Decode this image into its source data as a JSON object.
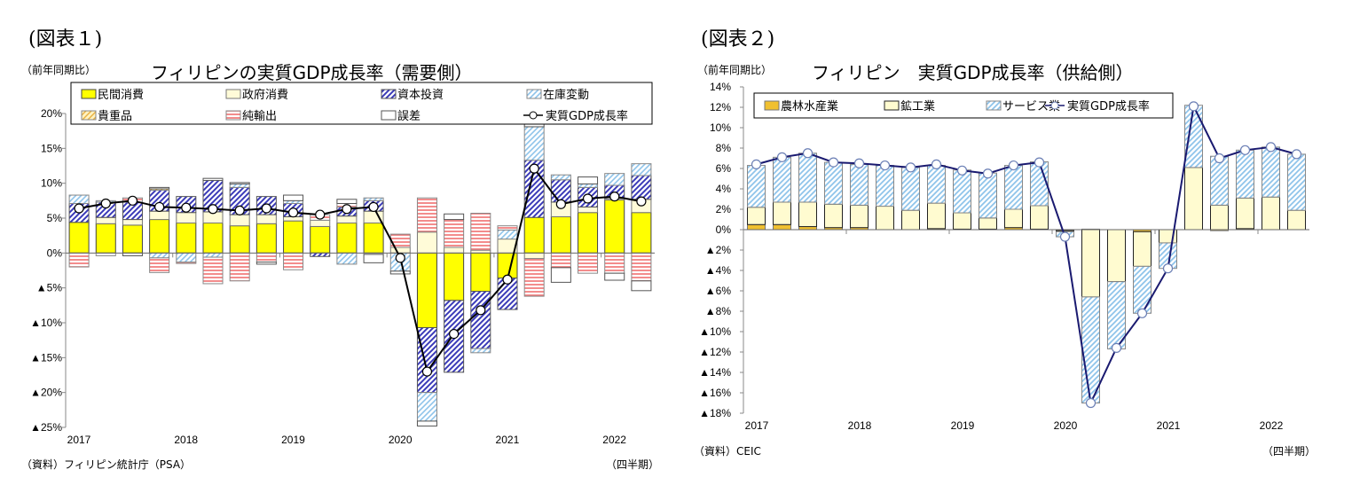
{
  "colors": {
    "private": "#ffff00",
    "gov": "#fffbd8",
    "capital": "#3a3ab8",
    "inventory": "#8fc4ea",
    "valuables": "#e8b040",
    "netexports": "#f07070",
    "discrepancy": "#ffffff",
    "agri": "#f0c030",
    "industry": "#fffbd0",
    "services": "#8fc4ea",
    "line1": "#000000",
    "line2": "#1a1a70"
  },
  "chart_data": [
    {
      "type": "bar",
      "stacked": true,
      "figure_label": "(図表１)",
      "unit_label": "（前年同期比）",
      "title": "フィリピンの実質GDP成長率（需要側）",
      "source": "（資料）フィリピン統計庁（PSA）",
      "xlabel": "（四半期）",
      "ylim": [
        -25,
        20
      ],
      "yticks": [
        20,
        15,
        10,
        5,
        0,
        -5,
        -10,
        -15,
        -20,
        -25
      ],
      "ytick_labels": [
        "20%",
        "15%",
        "10%",
        "5%",
        "0%",
        "▲5%",
        "▲10%",
        "▲15%",
        "▲20%",
        "▲25%"
      ],
      "x_year_labels": [
        "2017",
        "2018",
        "2019",
        "2020",
        "2021",
        "2022"
      ],
      "legend": "top",
      "categories": [
        "2017Q1",
        "2017Q2",
        "2017Q3",
        "2017Q4",
        "2018Q1",
        "2018Q2",
        "2018Q3",
        "2018Q4",
        "2019Q1",
        "2019Q2",
        "2019Q3",
        "2019Q4",
        "2020Q1",
        "2020Q2",
        "2020Q3",
        "2020Q4",
        "2021Q1",
        "2021Q2",
        "2021Q3",
        "2021Q4",
        "2022Q1",
        "2022Q2"
      ],
      "series": [
        {
          "name": "民間消費",
          "style": "private",
          "values": [
            4.4,
            4.2,
            4.0,
            4.8,
            4.3,
            4.3,
            3.9,
            4.2,
            4.6,
            3.8,
            4.3,
            4.3,
            0,
            -10.7,
            -6.8,
            -5.5,
            -3.6,
            5.1,
            5.2,
            5.8,
            7.6,
            5.8
          ]
        },
        {
          "name": "政府消費",
          "style": "gov",
          "values": [
            0,
            0.9,
            0.8,
            1.2,
            1.5,
            1.6,
            1.6,
            1.3,
            0.6,
            0.9,
            1.0,
            1.7,
            0.8,
            3.0,
            0.8,
            0.4,
            2.0,
            -0.8,
            2.1,
            0.8,
            0.2,
            1.9
          ]
        },
        {
          "name": "資本投資",
          "style": "capital",
          "values": [
            2.7,
            2.2,
            2.5,
            3.0,
            2.3,
            4.5,
            3.9,
            2.6,
            1.9,
            -0.5,
            1.3,
            1.5,
            0,
            -9.3,
            -10.3,
            -8.2,
            -4.5,
            8.2,
            3.2,
            2.8,
            1.9,
            3.4
          ]
        },
        {
          "name": "在庫変動",
          "style": "inventory",
          "values": [
            1.2,
            0.2,
            0,
            -0.7,
            -1.3,
            -0.6,
            0.5,
            0,
            0.4,
            0,
            -1.6,
            0.4,
            -2.6,
            -4.1,
            0,
            -0.6,
            1.3,
            4.8,
            0.7,
            0.5,
            1.7,
            1.7
          ]
        },
        {
          "name": "貴重品",
          "style": "valuables",
          "values": [
            0,
            0,
            0,
            0.2,
            0,
            0,
            0,
            0,
            0,
            0,
            0,
            0,
            0,
            0,
            0,
            0,
            0,
            0,
            0,
            0,
            0,
            0
          ]
        },
        {
          "name": "純輸出",
          "style": "netexports",
          "values": [
            -2.0,
            -0.4,
            0.6,
            -2.1,
            -0.2,
            -3.8,
            -4.0,
            -1.3,
            -2.4,
            0.8,
            0.5,
            -0.2,
            1.9,
            4.9,
            4.0,
            5.3,
            0.6,
            -5.4,
            -2.1,
            -2.9,
            -2.9,
            -4.0
          ]
        },
        {
          "name": "誤差",
          "style": "discrepancy",
          "values": [
            0,
            0,
            -0.4,
            0.2,
            0,
            0.3,
            0.2,
            -0.3,
            0.8,
            0,
            0.6,
            -1.2,
            -0.4,
            -0.7,
            0.8,
            0,
            0,
            0.6,
            -2.1,
            1.0,
            -1.0,
            -1.4
          ]
        },
        {
          "name": "実質GDP成長率",
          "style": "line1",
          "type": "line",
          "values": [
            6.4,
            7.1,
            7.5,
            6.6,
            6.5,
            6.3,
            6.1,
            6.4,
            5.8,
            5.5,
            6.3,
            6.6,
            -0.7,
            -17.0,
            -11.6,
            -8.2,
            -3.8,
            12.1,
            7.0,
            7.8,
            8.1,
            7.4
          ]
        }
      ]
    },
    {
      "type": "bar",
      "stacked": true,
      "figure_label": "(図表２)",
      "unit_label": "（前年同期比）",
      "title": "フィリピン　実質GDP成長率（供給側）",
      "source": "（資料）CEIC",
      "xlabel": "（四半期）",
      "ylim": [
        -18,
        14
      ],
      "yticks": [
        14,
        12,
        10,
        8,
        6,
        4,
        2,
        0,
        -2,
        -4,
        -6,
        -8,
        -10,
        -12,
        -14,
        -16,
        -18
      ],
      "ytick_labels": [
        "14%",
        "12%",
        "10%",
        "8%",
        "6%",
        "4%",
        "2%",
        "0%",
        "▲2%",
        "▲4%",
        "▲6%",
        "▲8%",
        "▲10%",
        "▲12%",
        "▲14%",
        "▲16%",
        "▲18%"
      ],
      "x_year_labels": [
        "2017",
        "2018",
        "2019",
        "2020",
        "2021",
        "2022"
      ],
      "legend": "top",
      "categories": [
        "2017Q1",
        "2017Q2",
        "2017Q3",
        "2017Q4",
        "2018Q1",
        "2018Q2",
        "2018Q3",
        "2018Q4",
        "2019Q1",
        "2019Q2",
        "2019Q3",
        "2019Q4",
        "2020Q1",
        "2020Q2",
        "2020Q3",
        "2020Q4",
        "2021Q1",
        "2021Q2",
        "2021Q3",
        "2021Q4",
        "2022Q1",
        "2022Q2"
      ],
      "series": [
        {
          "name": "農林水産業",
          "style": "agri",
          "values": [
            0.5,
            0.5,
            0.3,
            0.2,
            0.2,
            0,
            0,
            0.1,
            0.05,
            0.05,
            0.2,
            0.05,
            -0.1,
            0.05,
            0,
            -0.2,
            0,
            0,
            -0.1,
            0.1,
            0,
            0
          ]
        },
        {
          "name": "鉱工業",
          "style": "industry",
          "values": [
            1.7,
            2.2,
            2.4,
            2.3,
            2.2,
            2.3,
            1.9,
            2.5,
            1.6,
            1.1,
            1.8,
            2.3,
            -0.1,
            -6.6,
            -5.1,
            -3.4,
            -1.3,
            6.1,
            2.4,
            3.0,
            3.2,
            1.9
          ]
        },
        {
          "name": "サービス業",
          "style": "services",
          "values": [
            4.1,
            4.4,
            4.8,
            4.1,
            4.0,
            4.0,
            4.2,
            3.7,
            4.2,
            4.4,
            4.3,
            4.3,
            -0.5,
            -10.4,
            -6.6,
            -4.6,
            -2.5,
            6.1,
            4.8,
            4.7,
            4.9,
            5.5
          ]
        },
        {
          "name": "実質GDP成長率",
          "style": "line2",
          "type": "line",
          "values": [
            6.4,
            7.1,
            7.5,
            6.6,
            6.5,
            6.3,
            6.1,
            6.4,
            5.8,
            5.5,
            6.3,
            6.6,
            -0.7,
            -17.0,
            -11.6,
            -8.2,
            -3.8,
            12.1,
            7.0,
            7.8,
            8.1,
            7.4
          ]
        }
      ]
    }
  ]
}
